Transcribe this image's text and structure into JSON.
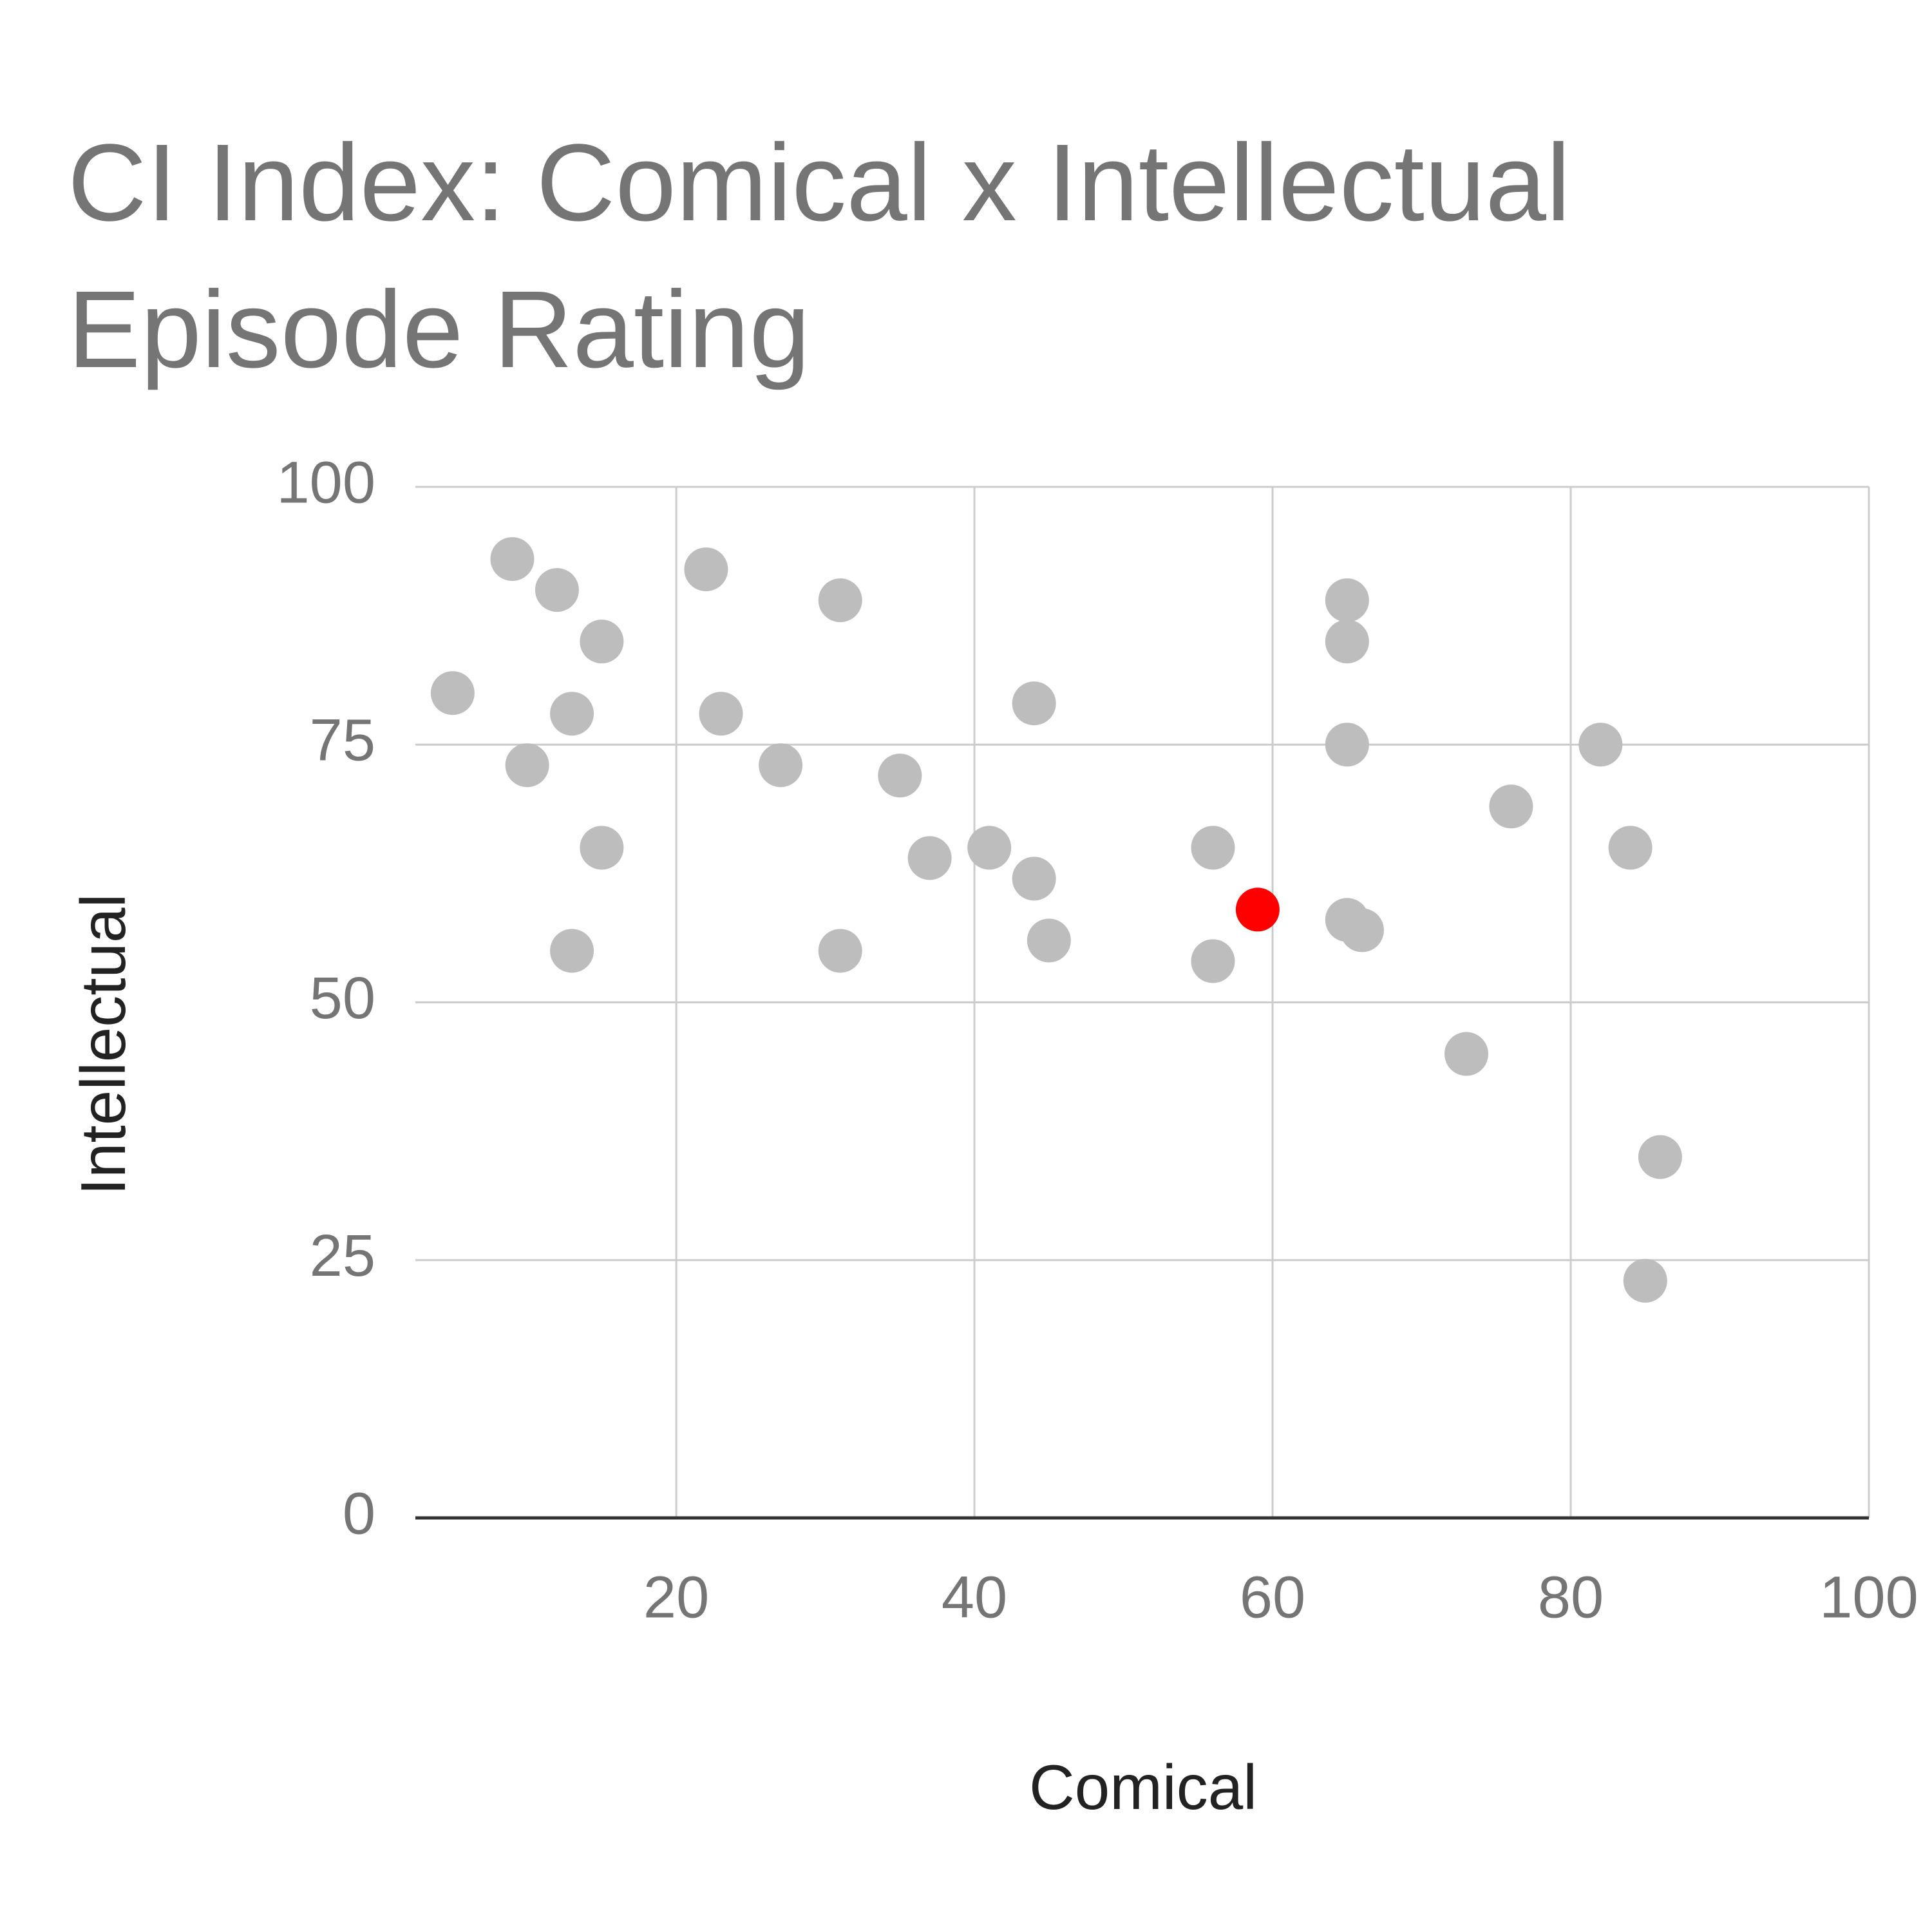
{
  "chart_data": {
    "type": "scatter",
    "title": "CI Index: Comical x Intellectual Episode Rating",
    "x_label": "Comical",
    "y_label": "Intellectual",
    "xlim": [
      2.5,
      100
    ],
    "xticks": [
      20,
      40,
      60,
      80,
      100
    ],
    "ylim": [
      0,
      100
    ],
    "yticks": [
      0,
      25,
      50,
      75,
      100
    ],
    "grid": true,
    "series": [
      {
        "color": "#bdbdbd",
        "x": [
          9,
          12,
          15,
          5,
          13,
          10,
          15,
          13,
          22,
          23,
          27,
          31,
          35,
          37,
          31,
          41,
          44,
          44,
          45,
          56,
          56,
          65,
          65,
          65,
          65,
          66,
          73,
          76,
          82,
          84,
          86,
          85
        ],
        "values": [
          93,
          90,
          85,
          80,
          78,
          73,
          65,
          55,
          92,
          78,
          73,
          89,
          72,
          64,
          55,
          65,
          79,
          62,
          56,
          65,
          54,
          89,
          85,
          75,
          58,
          57,
          45,
          69,
          75,
          65,
          35,
          23
        ]
      },
      {
        "color": "#ff0000",
        "x": [
          59
        ],
        "values": [
          59
        ]
      }
    ]
  }
}
